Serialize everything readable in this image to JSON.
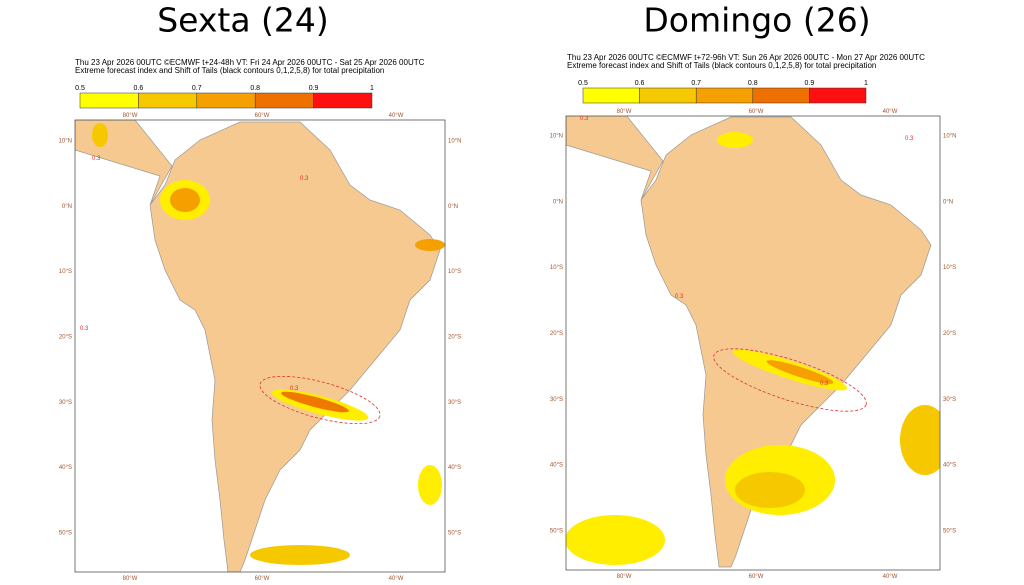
{
  "panels": [
    {
      "title": "Sexta (24)",
      "header": [
        "Thu 23 Apr 2026 00UTC ©ECMWF t+24-48h  VT: Fri 24 Apr 2026 00UTC - Sat 25 Apr 2026 00UTC",
        "Extreme forecast index and Shift of Tails (black contours 0,1,2,5,8) for total precipitation"
      ],
      "colorbar": [
        0.5,
        0.6,
        0.7,
        0.8,
        0.9,
        1
      ],
      "lat_labels": [
        "10°N",
        "0°N",
        "10°S",
        "20°S",
        "30°S",
        "40°S",
        "50°S"
      ],
      "lon_labels": [
        "80°W",
        "60°W",
        "40°W"
      ],
      "contour_labels": [
        "0.3",
        "0.3",
        "0.3",
        "0.3"
      ]
    },
    {
      "title": "Domingo (26)",
      "header": [
        "Thu 23 Apr 2026 00UTC ©ECMWF t+72-96h  VT: Sun 26 Apr 2026 00UTC - Mon 27 Apr 2026 00UTC",
        "Extreme forecast index and Shift of Tails (black contours 0,1,2,5,8) for total precipitation"
      ],
      "colorbar": [
        0.5,
        0.6,
        0.7,
        0.8,
        0.9,
        1
      ],
      "lat_labels": [
        "10°N",
        "0°N",
        "10°S",
        "20°S",
        "30°S",
        "40°S",
        "50°S"
      ],
      "lon_labels": [
        "80°W",
        "60°W",
        "40°W"
      ],
      "contour_labels": [
        "0.3",
        "0.3",
        "0.3",
        "0.3"
      ]
    }
  ]
}
